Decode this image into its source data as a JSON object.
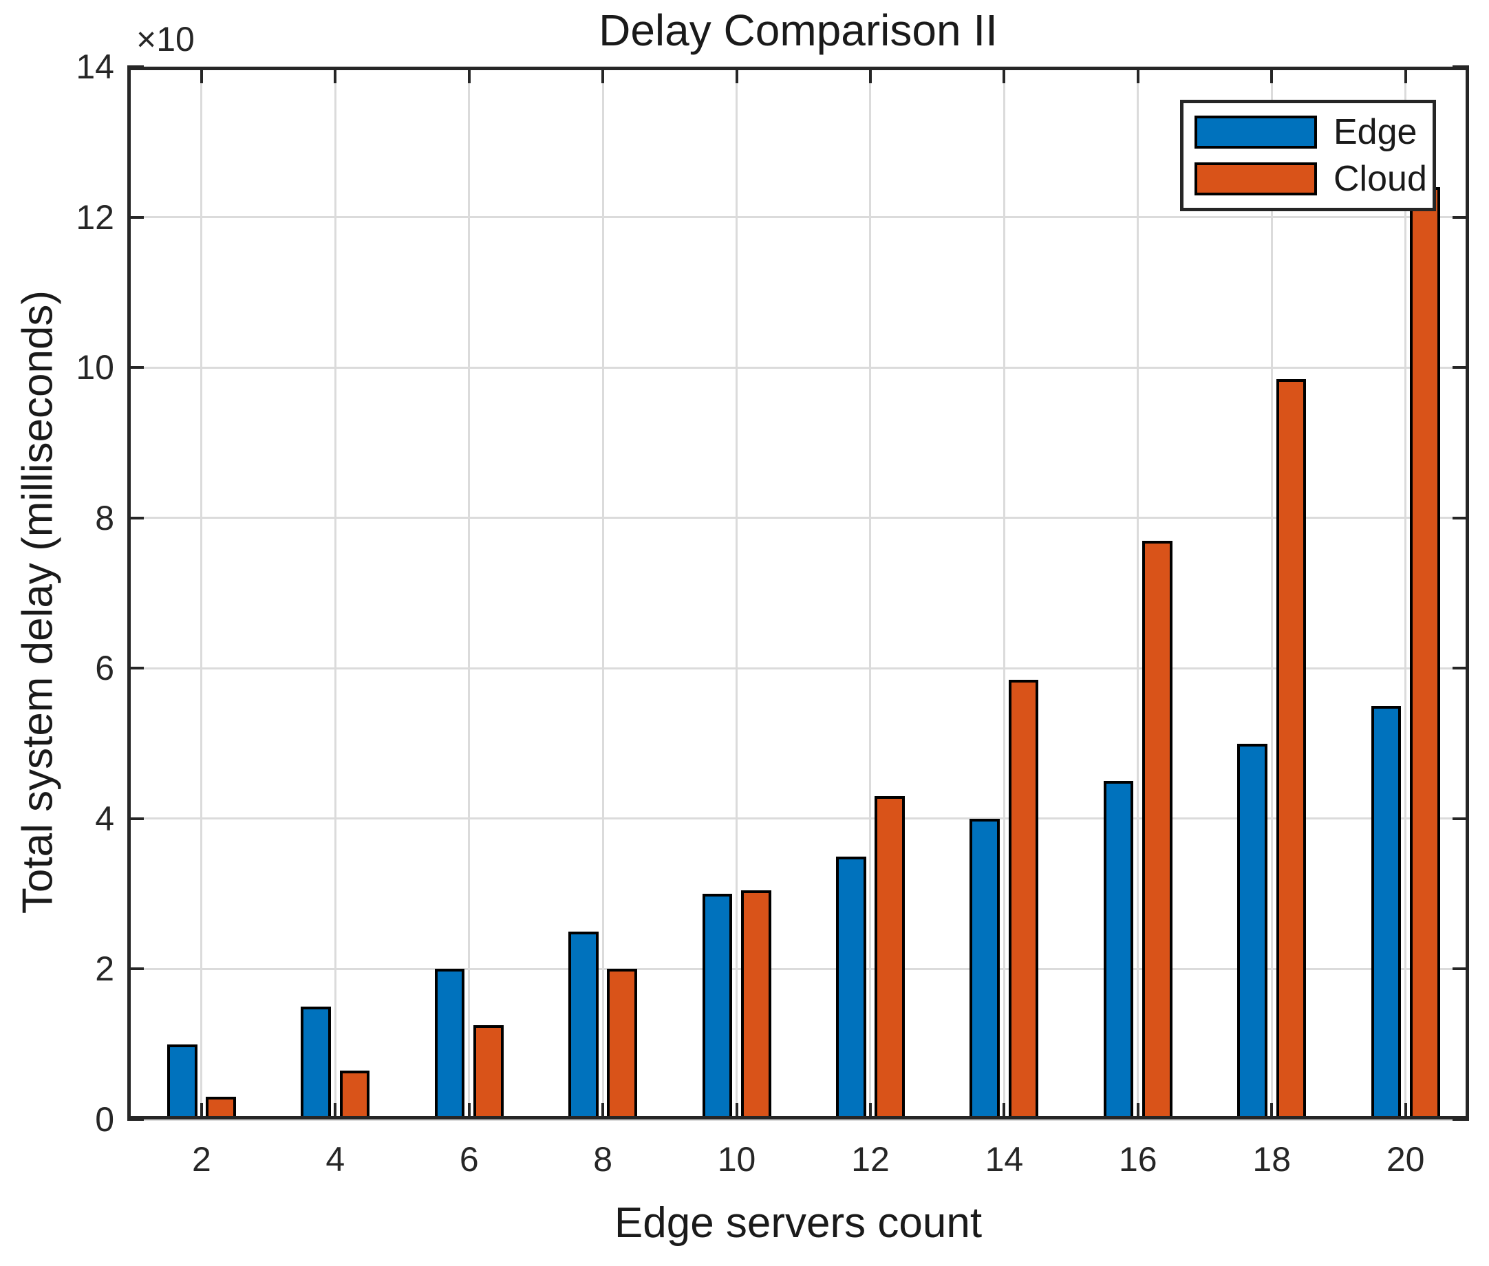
{
  "chart_data": {
    "type": "bar",
    "title": "Delay Comparison II",
    "xlabel": "Edge servers count",
    "ylabel": "Total system delay (milliseconds)",
    "y_multiplier": "×10",
    "values_unit": "×10 milliseconds (axis units)",
    "categories": [
      2,
      4,
      6,
      8,
      10,
      12,
      14,
      16,
      18,
      20
    ],
    "series": [
      {
        "name": "Edge",
        "color": "#0072BD",
        "values": [
          1.0,
          1.5,
          2.0,
          2.5,
          3.0,
          3.5,
          4.0,
          4.5,
          5.0,
          5.5
        ]
      },
      {
        "name": "Cloud",
        "color": "#D95319",
        "values": [
          0.3,
          0.65,
          1.25,
          2.0,
          3.05,
          4.3,
          5.85,
          7.7,
          9.85,
          12.4
        ]
      }
    ],
    "xlim": [
      0.89,
      20.95
    ],
    "ylim": [
      0,
      14
    ],
    "xticks": [
      2,
      4,
      6,
      8,
      10,
      12,
      14,
      16,
      18,
      20
    ],
    "yticks": [
      0,
      2,
      4,
      6,
      8,
      10,
      12,
      14
    ],
    "grid": true,
    "legend_position": "top-right",
    "bar_edge_color": "#000000",
    "axis_color": "#262626",
    "grid_color": "#dbdbdb"
  }
}
